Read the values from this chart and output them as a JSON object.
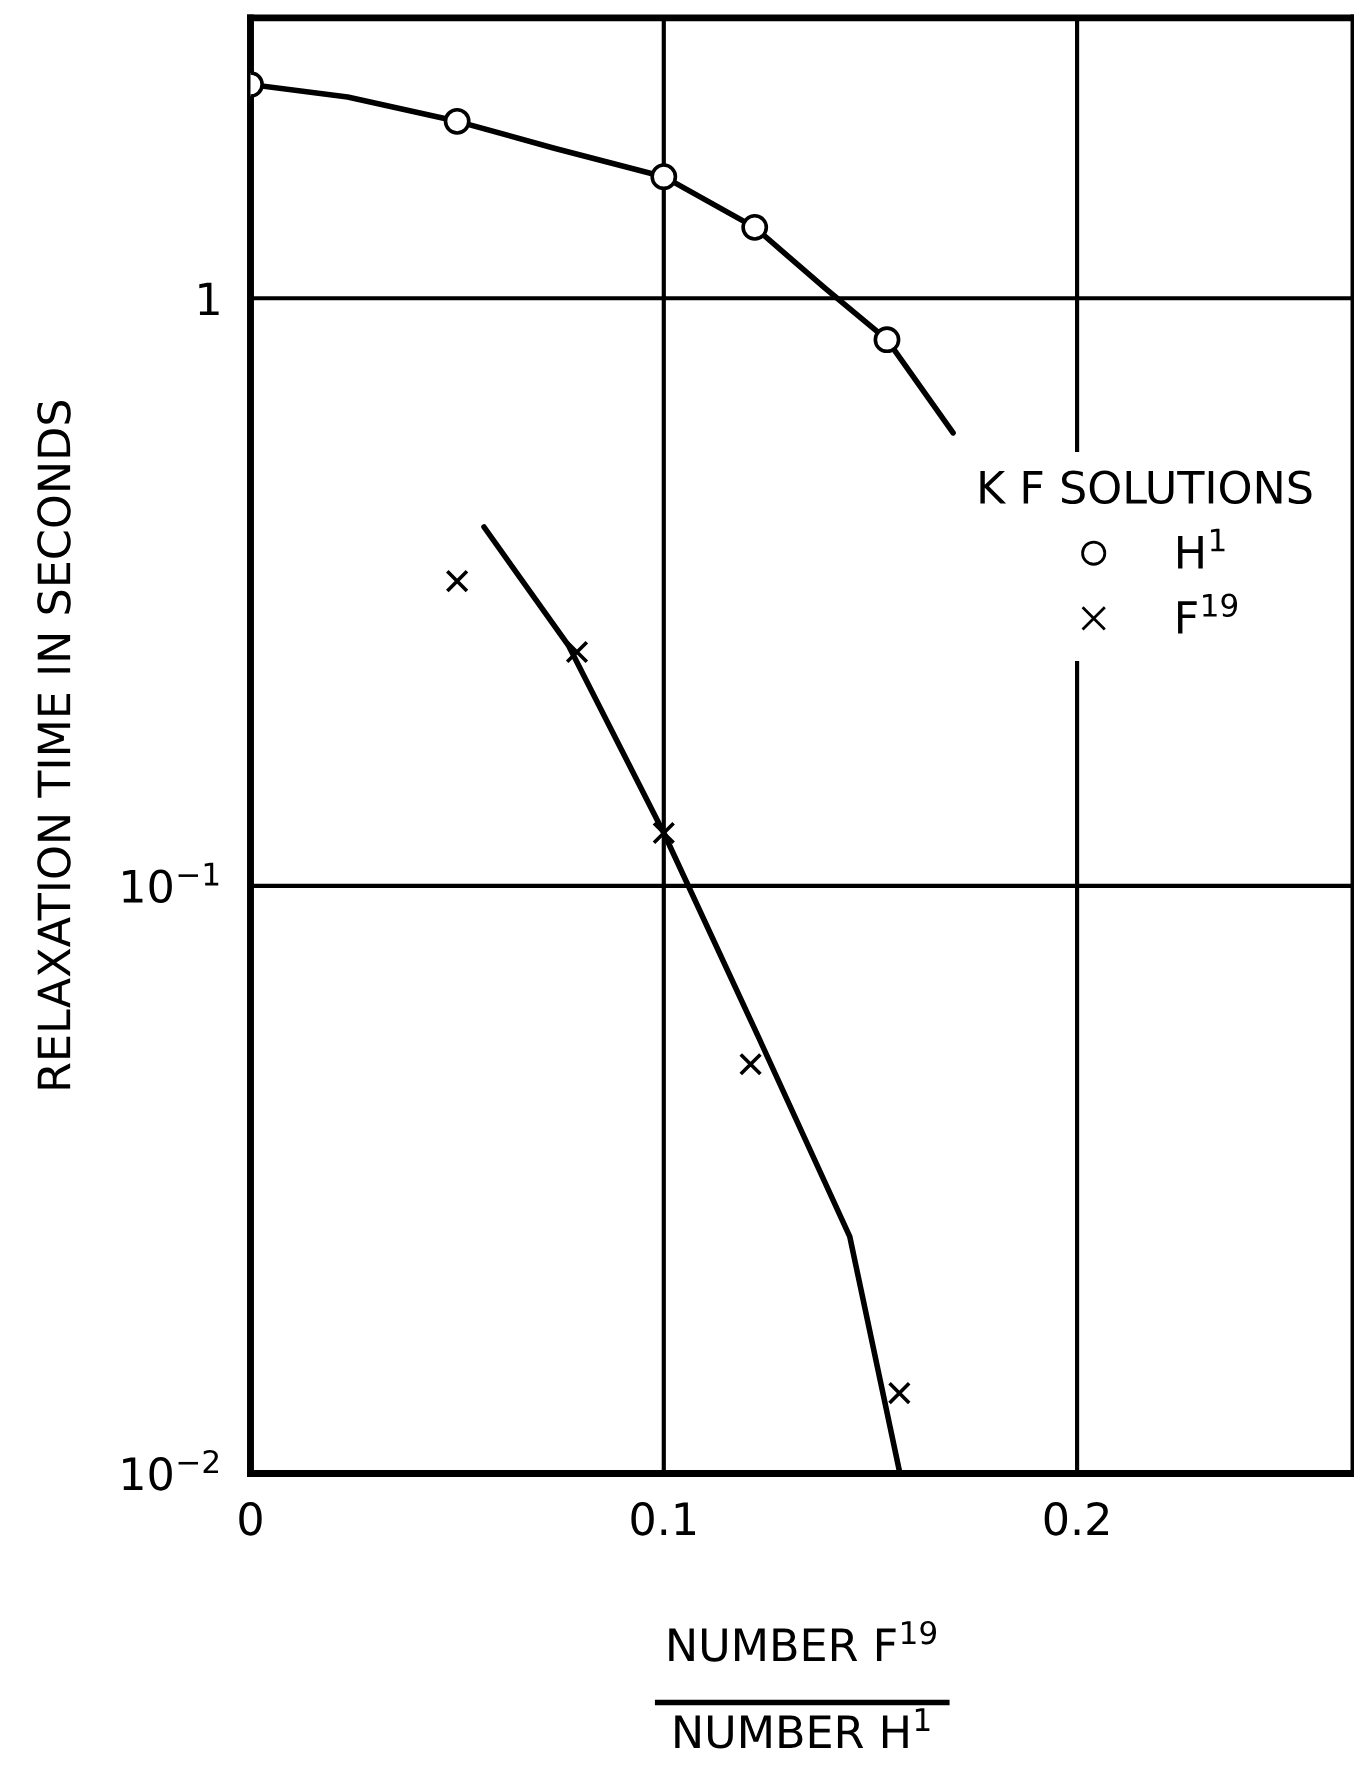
{
  "chart_data": {
    "type": "scatter",
    "xlabel": "NUMBER F$^{19}$\nNUMBER H$^{1}$",
    "ylabel": "RELAXATION TIME IN SECONDS",
    "legend_title": "K F SOLUTIONS",
    "xlim": [
      0,
      0.267
    ],
    "ylim": [
      0.01,
      3.0
    ],
    "log": "y",
    "xticks": [
      0,
      0.1,
      0.2
    ],
    "yticks": [
      {
        "value": 0.01,
        "label": "10$^{−2}$"
      },
      {
        "value": 0.1,
        "label": "10$^{−1}$"
      },
      1
    ],
    "grid": true,
    "legend": "right",
    "series": [
      {
        "name": "H$^{1}$",
        "type": "scatter",
        "marker": "circle",
        "color": "#000000",
        "x": [
          0,
          0.05,
          0.1,
          0.122,
          0.154
        ],
        "values": [
          2.31,
          2.0,
          1.61,
          1.32,
          0.85
        ]
      },
      {
        "name": "F$^{19}$",
        "type": "scatter",
        "marker": "cross",
        "color": "#000000",
        "x": [
          0.05,
          0.079,
          0.1,
          0.121,
          0.157
        ],
        "values": [
          0.33,
          0.25,
          0.123,
          0.0497,
          0.0137
        ]
      },
      {
        "type": "line",
        "color": "#000000",
        "x": [
          0,
          0.0235,
          0.05,
          0.0735,
          0.1,
          0.122,
          0.139,
          0.154,
          0.17
        ],
        "values": [
          2.31,
          2.2,
          2.0,
          1.8,
          1.61,
          1.32,
          1.04,
          0.85,
          0.59
        ]
      },
      {
        "type": "line",
        "color": "#000000",
        "x": [
          0.0565,
          0.077,
          0.1,
          0.123,
          0.145,
          0.157
        ],
        "values": [
          0.408,
          0.256,
          0.123,
          0.0551,
          0.0253,
          0.0101
        ]
      }
    ]
  }
}
